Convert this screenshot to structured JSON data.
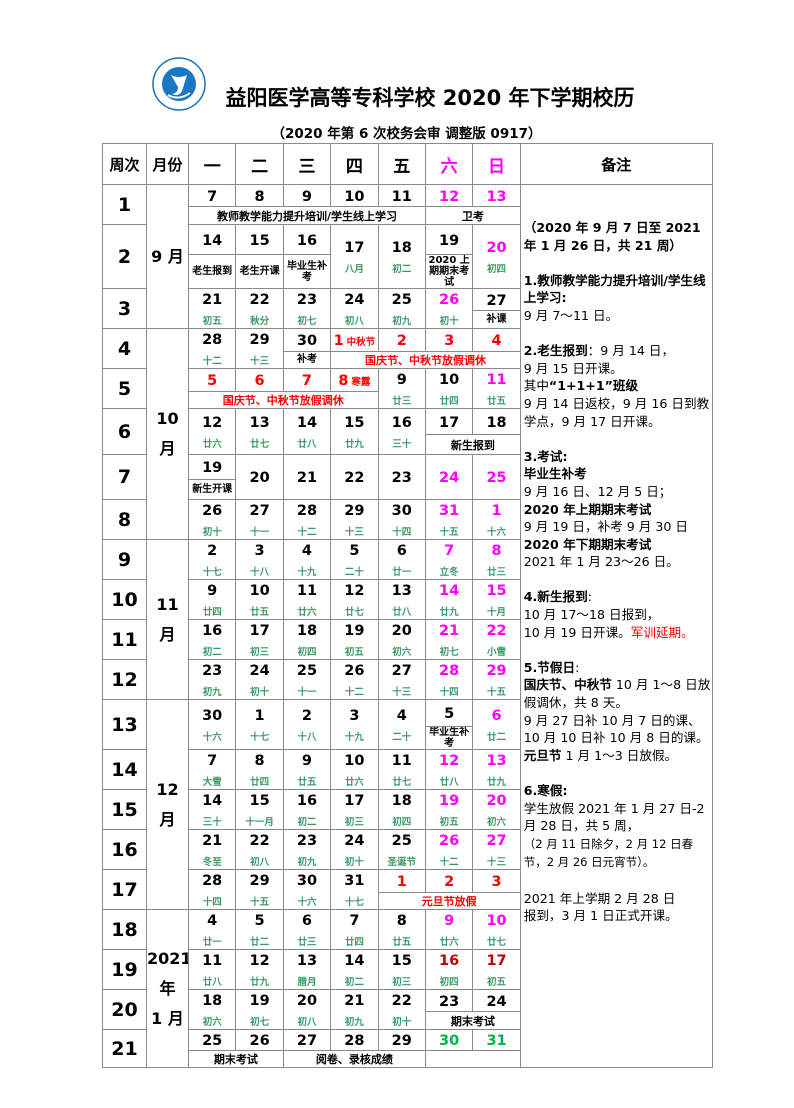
{
  "header": {
    "title": "益阳医学高等专科学校 2020 年下学期校历",
    "subtitle": "（2020 年第 6 次校务会审  调整版 0917）",
    "logo_text": "益阳医学高等专科学校 YIYANG MEDICAL COLLEGE"
  },
  "colors": {
    "weekend": "#ff00ff",
    "holiday": "#ff0000",
    "spring": "#c00000",
    "green": "#00b050",
    "lunar": "#3a9a64"
  },
  "columns": {
    "week": "周次",
    "month": "月份",
    "days": [
      {
        "t": "一"
      },
      {
        "t": "二"
      },
      {
        "t": "三"
      },
      {
        "t": "四"
      },
      {
        "t": "五"
      },
      {
        "t": "六",
        "c": "weekend"
      },
      {
        "t": "日",
        "c": "weekend"
      }
    ],
    "notes": "备注"
  },
  "months": [
    {
      "label": [
        "9 月"
      ],
      "weeks": 3
    },
    {
      "label": [
        "10",
        "月"
      ],
      "weeks": 5
    },
    {
      "label": [
        "11",
        "月"
      ],
      "weeks": 4
    },
    {
      "label": [
        "12",
        "月"
      ],
      "weeks": 5
    },
    {
      "label": [
        "2021",
        "年",
        "1 月"
      ],
      "weeks": 4
    }
  ],
  "weeks": [
    {
      "no": "1",
      "days": [
        {
          "n": "7"
        },
        {
          "n": "8"
        },
        {
          "n": "9"
        },
        {
          "n": "10"
        },
        {
          "n": "11"
        },
        {
          "n": "12",
          "c": "weekend"
        },
        {
          "n": "13",
          "c": "weekend"
        }
      ],
      "bands": [
        {
          "from": 0,
          "to": 4,
          "text": "教师教学能力提升培训/学生线上学习"
        },
        {
          "from": 5,
          "to": 6,
          "text": "卫考"
        }
      ]
    },
    {
      "no": "2",
      "days": [
        {
          "n": "14",
          "note": "老生报到"
        },
        {
          "n": "15",
          "note": "老生开课"
        },
        {
          "n": "16",
          "note": "毕业生补考"
        },
        {
          "n": "17",
          "l": "八月"
        },
        {
          "n": "18",
          "l": "初二"
        },
        {
          "n": "19",
          "note": "2020 上期期末考试"
        },
        {
          "n": "20",
          "c": "weekend",
          "l": "初四"
        }
      ],
      "bands": []
    },
    {
      "no": "3",
      "days": [
        {
          "n": "21",
          "l": "初五"
        },
        {
          "n": "22",
          "l": "秋分"
        },
        {
          "n": "23",
          "l": "初七"
        },
        {
          "n": "24",
          "l": "初八"
        },
        {
          "n": "25",
          "l": "初九"
        },
        {
          "n": "26",
          "c": "weekend",
          "l": "初十"
        },
        {
          "n": "27",
          "note": "补课"
        }
      ],
      "bands": []
    },
    {
      "no": "4",
      "days": [
        {
          "n": "28",
          "l": "十二"
        },
        {
          "n": "29",
          "l": "十三"
        },
        {
          "n": "30",
          "note": "补考"
        },
        {
          "n": "1",
          "c": "holiday",
          "tag": "中秋节"
        },
        {
          "n": "2",
          "c": "holiday"
        },
        {
          "n": "3",
          "c": "holiday"
        },
        {
          "n": "4",
          "c": "holiday"
        }
      ],
      "bands": [
        {
          "from": 3,
          "to": 6,
          "text": "国庆节、中秋节放假调休",
          "c": "holiday"
        }
      ]
    },
    {
      "no": "5",
      "days": [
        {
          "n": "5",
          "c": "holiday"
        },
        {
          "n": "6",
          "c": "holiday"
        },
        {
          "n": "7",
          "c": "holiday"
        },
        {
          "n": "8",
          "c": "holiday",
          "tag": "寒露"
        },
        {
          "n": "9",
          "l": "廿三"
        },
        {
          "n": "10",
          "l": "廿四"
        },
        {
          "n": "11",
          "c": "weekend",
          "l": "廿五"
        }
      ],
      "bands": [
        {
          "from": 0,
          "to": 3,
          "text": "国庆节、中秋节放假调休",
          "c": "holiday"
        }
      ]
    },
    {
      "no": "6",
      "days": [
        {
          "n": "12",
          "l": "廿六"
        },
        {
          "n": "13",
          "l": "廿七"
        },
        {
          "n": "14",
          "l": "廿八"
        },
        {
          "n": "15",
          "l": "廿九"
        },
        {
          "n": "16",
          "l": "三十"
        },
        {
          "n": "17"
        },
        {
          "n": "18"
        }
      ],
      "bands": [
        {
          "from": 5,
          "to": 6,
          "text": "新生报到"
        }
      ]
    },
    {
      "no": "7",
      "days": [
        {
          "n": "19",
          "note": "新生开课"
        },
        {
          "n": "20"
        },
        {
          "n": "21"
        },
        {
          "n": "22"
        },
        {
          "n": "23"
        },
        {
          "n": "24",
          "c": "weekend"
        },
        {
          "n": "25",
          "c": "weekend"
        }
      ],
      "bands": []
    },
    {
      "no": "8",
      "days": [
        {
          "n": "26",
          "l": "初十"
        },
        {
          "n": "27",
          "l": "十一"
        },
        {
          "n": "28",
          "l": "十二"
        },
        {
          "n": "29",
          "l": "十三"
        },
        {
          "n": "30",
          "l": "十四"
        },
        {
          "n": "31",
          "c": "weekend",
          "l": "十五"
        },
        {
          "n": "1",
          "c": "weekend",
          "l": "十六"
        }
      ],
      "bands": []
    },
    {
      "no": "9",
      "days": [
        {
          "n": "2",
          "l": "十七"
        },
        {
          "n": "3",
          "l": "十八"
        },
        {
          "n": "4",
          "l": "十九"
        },
        {
          "n": "5",
          "l": "二十"
        },
        {
          "n": "6",
          "l": "廿一"
        },
        {
          "n": "7",
          "c": "weekend",
          "l": "立冬"
        },
        {
          "n": "8",
          "c": "weekend",
          "l": "廿三"
        }
      ],
      "bands": []
    },
    {
      "no": "10",
      "days": [
        {
          "n": "9",
          "l": "廿四"
        },
        {
          "n": "10",
          "l": "廿五"
        },
        {
          "n": "11",
          "l": "廿六"
        },
        {
          "n": "12",
          "l": "廿七"
        },
        {
          "n": "13",
          "l": "廿八"
        },
        {
          "n": "14",
          "c": "weekend",
          "l": "廿九"
        },
        {
          "n": "15",
          "c": "weekend",
          "l": "十月"
        }
      ],
      "bands": []
    },
    {
      "no": "11",
      "days": [
        {
          "n": "16",
          "l": "初二"
        },
        {
          "n": "17",
          "l": "初三"
        },
        {
          "n": "18",
          "l": "初四"
        },
        {
          "n": "19",
          "l": "初五"
        },
        {
          "n": "20",
          "l": "初六"
        },
        {
          "n": "21",
          "c": "weekend",
          "l": "初七"
        },
        {
          "n": "22",
          "c": "weekend",
          "l": "小雪"
        }
      ],
      "bands": []
    },
    {
      "no": "12",
      "days": [
        {
          "n": "23",
          "l": "初九"
        },
        {
          "n": "24",
          "l": "初十"
        },
        {
          "n": "25",
          "l": "十一"
        },
        {
          "n": "26",
          "l": "十二"
        },
        {
          "n": "27",
          "l": "十三"
        },
        {
          "n": "28",
          "c": "weekend",
          "l": "十四"
        },
        {
          "n": "29",
          "c": "weekend",
          "l": "十五"
        }
      ],
      "bands": []
    },
    {
      "no": "13",
      "days": [
        {
          "n": "30",
          "l": "十六"
        },
        {
          "n": "1",
          "l": "十七"
        },
        {
          "n": "2",
          "l": "十八"
        },
        {
          "n": "3",
          "l": "十九"
        },
        {
          "n": "4",
          "l": "二十"
        },
        {
          "n": "5",
          "note": "毕业生补考"
        },
        {
          "n": "6",
          "c": "weekend",
          "l": "廿二"
        }
      ],
      "bands": []
    },
    {
      "no": "14",
      "days": [
        {
          "n": "7",
          "l": "大雪"
        },
        {
          "n": "8",
          "l": "廿四"
        },
        {
          "n": "9",
          "l": "廿五"
        },
        {
          "n": "10",
          "l": "廿六"
        },
        {
          "n": "11",
          "l": "廿七"
        },
        {
          "n": "12",
          "c": "weekend",
          "l": "廿八"
        },
        {
          "n": "13",
          "c": "weekend",
          "l": "廿九"
        }
      ],
      "bands": []
    },
    {
      "no": "15",
      "days": [
        {
          "n": "14",
          "l": "三十"
        },
        {
          "n": "15",
          "l": "十一月"
        },
        {
          "n": "16",
          "l": "初二"
        },
        {
          "n": "17",
          "l": "初三"
        },
        {
          "n": "18",
          "l": "初四"
        },
        {
          "n": "19",
          "c": "weekend",
          "l": "初五"
        },
        {
          "n": "20",
          "c": "weekend",
          "l": "初六"
        }
      ],
      "bands": []
    },
    {
      "no": "16",
      "days": [
        {
          "n": "21",
          "l": "冬至"
        },
        {
          "n": "22",
          "l": "初八"
        },
        {
          "n": "23",
          "l": "初九"
        },
        {
          "n": "24",
          "l": "初十"
        },
        {
          "n": "25",
          "l": "圣诞节"
        },
        {
          "n": "26",
          "c": "weekend",
          "l": "十二"
        },
        {
          "n": "27",
          "c": "weekend",
          "l": "十三"
        }
      ],
      "bands": []
    },
    {
      "no": "17",
      "days": [
        {
          "n": "28",
          "l": "十四"
        },
        {
          "n": "29",
          "l": "十五"
        },
        {
          "n": "30",
          "l": "十六"
        },
        {
          "n": "31",
          "l": "十七"
        },
        {
          "n": "1",
          "c": "holiday"
        },
        {
          "n": "2",
          "c": "holiday"
        },
        {
          "n": "3",
          "c": "holiday"
        }
      ],
      "bands": [
        {
          "from": 4,
          "to": 6,
          "text": "元旦节放假",
          "c": "holiday"
        }
      ]
    },
    {
      "no": "18",
      "days": [
        {
          "n": "4",
          "l": "廿一"
        },
        {
          "n": "5",
          "l": "廿二"
        },
        {
          "n": "6",
          "l": "廿三"
        },
        {
          "n": "7",
          "l": "廿四"
        },
        {
          "n": "8",
          "l": "廿五"
        },
        {
          "n": "9",
          "c": "weekend",
          "l": "廿六"
        },
        {
          "n": "10",
          "c": "weekend",
          "l": "廿七"
        }
      ],
      "bands": []
    },
    {
      "no": "19",
      "days": [
        {
          "n": "11",
          "l": "廿八"
        },
        {
          "n": "12",
          "l": "廿九"
        },
        {
          "n": "13",
          "l": "腊月"
        },
        {
          "n": "14",
          "l": "初二"
        },
        {
          "n": "15",
          "l": "初三"
        },
        {
          "n": "16",
          "c": "spring",
          "l": "初四"
        },
        {
          "n": "17",
          "c": "spring",
          "l": "初五"
        }
      ],
      "bands": []
    },
    {
      "no": "20",
      "days": [
        {
          "n": "18",
          "l": "初六"
        },
        {
          "n": "19",
          "l": "初七"
        },
        {
          "n": "20",
          "l": "初八"
        },
        {
          "n": "21",
          "l": "初九"
        },
        {
          "n": "22",
          "l": "初十"
        },
        {
          "n": "23"
        },
        {
          "n": "24"
        }
      ],
      "bands": [
        {
          "from": 5,
          "to": 6,
          "text": "期末考试"
        }
      ]
    },
    {
      "no": "21",
      "days": [
        {
          "n": "25"
        },
        {
          "n": "26"
        },
        {
          "n": "27"
        },
        {
          "n": "28"
        },
        {
          "n": "29"
        },
        {
          "n": "30",
          "c": "green"
        },
        {
          "n": "31",
          "c": "green"
        }
      ],
      "bands": [
        {
          "from": 0,
          "to": 1,
          "text": "期末考试"
        },
        {
          "from": 2,
          "to": 4,
          "text": "阅卷、录核成绩"
        },
        {
          "from": 5,
          "to": 6,
          "text": ""
        }
      ]
    }
  ],
  "notes": [
    [
      {
        "t": "（2020 年 9 月 7 日至 2021 年 1 月 26 日，共 21 周）",
        "b": true
      }
    ],
    [],
    [
      {
        "t": "1.教师教学能力提升培训/学生线上学习:",
        "b": true
      }
    ],
    [
      {
        "t": " 9 月 7～11 日。"
      }
    ],
    [],
    [
      {
        "t": "2.老生报到",
        "b": true
      },
      {
        "t": "：9 月 14 日，"
      }
    ],
    [
      {
        "t": "      9 月 15 日开课。"
      }
    ],
    [
      {
        "t": "其中"
      },
      {
        "t": "“1+1+1”班级",
        "b": true
      }
    ],
    [
      {
        "t": "9 月 14 日返校，9 月 16 日到教学点，9 月 17 日开课。"
      }
    ],
    [],
    [
      {
        "t": "3.考试:",
        "b": true
      }
    ],
    [
      {
        "t": "毕业生补考",
        "b": true
      }
    ],
    [
      {
        "t": "    9 月 16 日、12 月 5 日；"
      }
    ],
    [
      {
        "t": "2020 年上期期末考试",
        "b": true
      }
    ],
    [
      {
        "t": "9 月 19 日，补考 9 月 30 日"
      }
    ],
    [
      {
        "t": "2020 年下期期末考试",
        "b": true
      }
    ],
    [
      {
        "t": "2021 年 1 月 23～26 日。"
      }
    ],
    [],
    [
      {
        "t": "4.新生报到",
        "b": true
      },
      {
        "t": ":"
      }
    ],
    [
      {
        "t": "10 月 17～18 日报到，"
      }
    ],
    [
      {
        "t": "10 月 19 日开课。"
      },
      {
        "t": "军训延期。",
        "c": "holiday"
      }
    ],
    [],
    [
      {
        "t": "5.节假日",
        "b": true
      },
      {
        "t": ":"
      }
    ],
    [
      {
        "t": "国庆节、中秋节",
        "b": true
      },
      {
        "t": " 10 月 1～8 日放假调休，共 8 天。"
      }
    ],
    [
      {
        "t": "9 月 27 日补 10 月 7 日的课、10 月 10 日补 10 月 8 日的课。"
      }
    ],
    [
      {
        "t": "元旦节",
        "b": true
      },
      {
        "t": " 1 月 1～3 日放假。"
      }
    ],
    [],
    [
      {
        "t": "6.寒假:",
        "b": true
      }
    ],
    [
      {
        "t": "学生放假 2021 年 1 月 27 日-2 月 28 日，共 5 周，"
      }
    ],
    [
      {
        "t": "（2 月 11 日除夕，2 月 12 日春节，2 月 26 日元宵节）。",
        "s": true
      }
    ],
    [],
    [
      {
        "t": "2021 年上学期 2 月 28 日"
      }
    ],
    [
      {
        "t": "报到，3 月 1 日正式开课。"
      }
    ]
  ]
}
